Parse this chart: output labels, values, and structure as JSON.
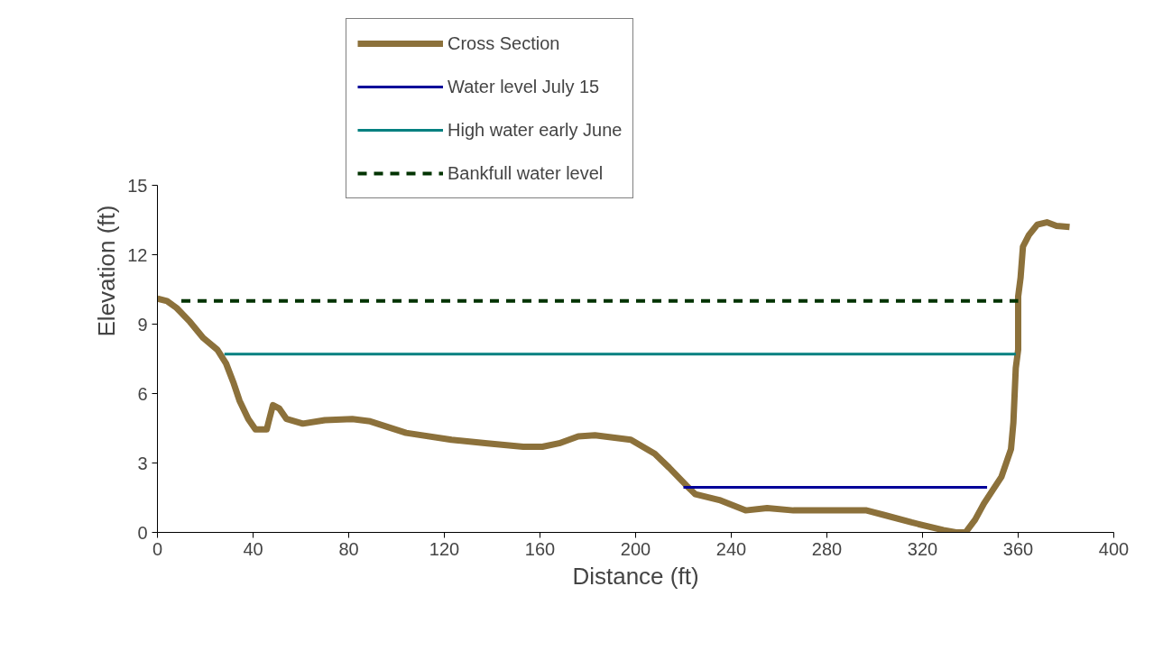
{
  "chart_data": {
    "type": "line",
    "xlabel": "Distance (ft)",
    "ylabel": "Elevation (ft)",
    "xlim": [
      0,
      400
    ],
    "xticks": [
      0,
      40,
      80,
      120,
      160,
      200,
      240,
      280,
      320,
      360,
      400
    ],
    "ylim": [
      0,
      15
    ],
    "yticks": [
      0,
      3,
      6,
      9,
      12,
      15
    ],
    "grid": false,
    "legend": "top",
    "marker": "none",
    "series": [
      {
        "name": "Cross Section",
        "color": "#8c713b",
        "line_style": "solid",
        "x": [
          0,
          4,
          8,
          13.6,
          19.2,
          25,
          28.7,
          31.7,
          34.3,
          38,
          41,
          45.7,
          46.8,
          48.3,
          51,
          54,
          60.8,
          70,
          81.5,
          89,
          104,
          123,
          138,
          153,
          161,
          168,
          176,
          183,
          198,
          208,
          214,
          221.5,
          225,
          235,
          246,
          255,
          266,
          289,
          296.6,
          304,
          315.5,
          328.7,
          334,
          338,
          342,
          345.7,
          353,
          357,
          358,
          359,
          360,
          360,
          361,
          362,
          364.5,
          368,
          372,
          376,
          381.5
        ],
        "values": [
          10.1,
          10.0,
          9.7,
          9.1,
          8.4,
          7.9,
          7.3,
          6.5,
          5.7,
          4.9,
          4.45,
          4.45,
          4.9,
          5.5,
          5.35,
          4.9,
          4.7,
          4.85,
          4.9,
          4.8,
          4.3,
          4.0,
          3.85,
          3.7,
          3.7,
          3.85,
          4.15,
          4.2,
          4.0,
          3.4,
          2.8,
          2.0,
          1.65,
          1.4,
          0.95,
          1.05,
          0.95,
          0.95,
          0.95,
          0.75,
          0.43,
          0.1,
          0,
          0,
          0.55,
          1.25,
          2.4,
          3.6,
          4.75,
          7.1,
          7.9,
          10.2,
          11.0,
          12.35,
          12.85,
          13.3,
          13.4,
          13.25,
          13.2
        ]
      },
      {
        "name": "Water level July 15",
        "color": "#000099",
        "line_style": "solid",
        "x": [
          220,
          347
        ],
        "values": [
          1.95,
          1.95
        ]
      },
      {
        "name": "High water early June",
        "color": "#008080",
        "line_style": "solid",
        "x": [
          28,
          359
        ],
        "values": [
          7.7,
          7.7
        ]
      },
      {
        "name": "Bankfull water level",
        "color": "#003300",
        "line_style": "dashed",
        "x": [
          10,
          360
        ],
        "values": [
          10,
          10
        ]
      }
    ]
  }
}
